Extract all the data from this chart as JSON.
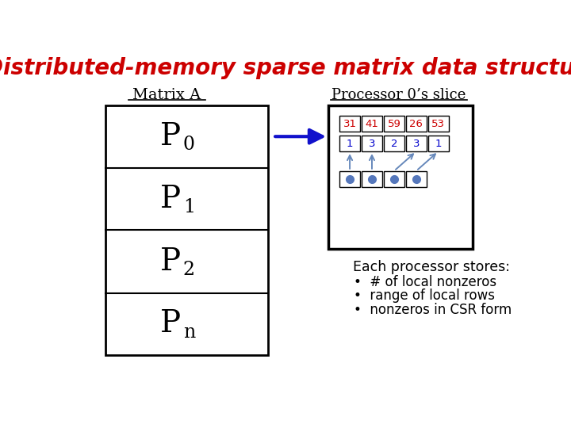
{
  "title": "Distributed-memory sparse matrix data structure",
  "title_color": "#cc0000",
  "title_fontsize": 20,
  "matrix_label": "Matrix A",
  "processor_label": "Processor 0’s slice",
  "processor_subscripts": [
    "0",
    "1",
    "2",
    "n"
  ],
  "row_values": [
    31,
    41,
    59,
    26,
    53
  ],
  "col_indices": [
    1,
    3,
    2,
    3,
    1
  ],
  "each_processor_text": "Each processor stores:",
  "bullet_items": [
    "# of local nonzeros",
    "range of local rows",
    "nonzeros in CSR form"
  ],
  "bg_color": "#ffffff",
  "text_color": "#000000",
  "red_color": "#cc0000",
  "blue_color": "#0000cc",
  "arrow_color": "#6688bb",
  "main_arrow_color": "#1111cc"
}
